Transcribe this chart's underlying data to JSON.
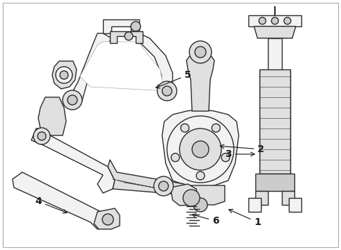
{
  "background_color": "#ffffff",
  "line_color": "#2a2a2a",
  "label_color": "#1a1a1a",
  "figsize": [
    4.9,
    3.6
  ],
  "dpi": 100,
  "labels": {
    "1": {
      "text": [
        0.755,
        0.085
      ],
      "arrow_to": [
        0.685,
        0.115
      ]
    },
    "2": {
      "text": [
        0.74,
        0.435
      ],
      "arrow_to": [
        0.64,
        0.435
      ]
    },
    "3": {
      "text": [
        0.63,
        0.615
      ],
      "arrow_to": [
        0.76,
        0.615
      ]
    },
    "4": {
      "text": [
        0.085,
        0.295
      ],
      "arrow_to": [
        0.175,
        0.355
      ]
    },
    "5": {
      "text": [
        0.52,
        0.755
      ],
      "arrow_to": [
        0.415,
        0.71
      ]
    },
    "6": {
      "text": [
        0.43,
        0.095
      ],
      "arrow_to": [
        0.365,
        0.14
      ]
    }
  }
}
